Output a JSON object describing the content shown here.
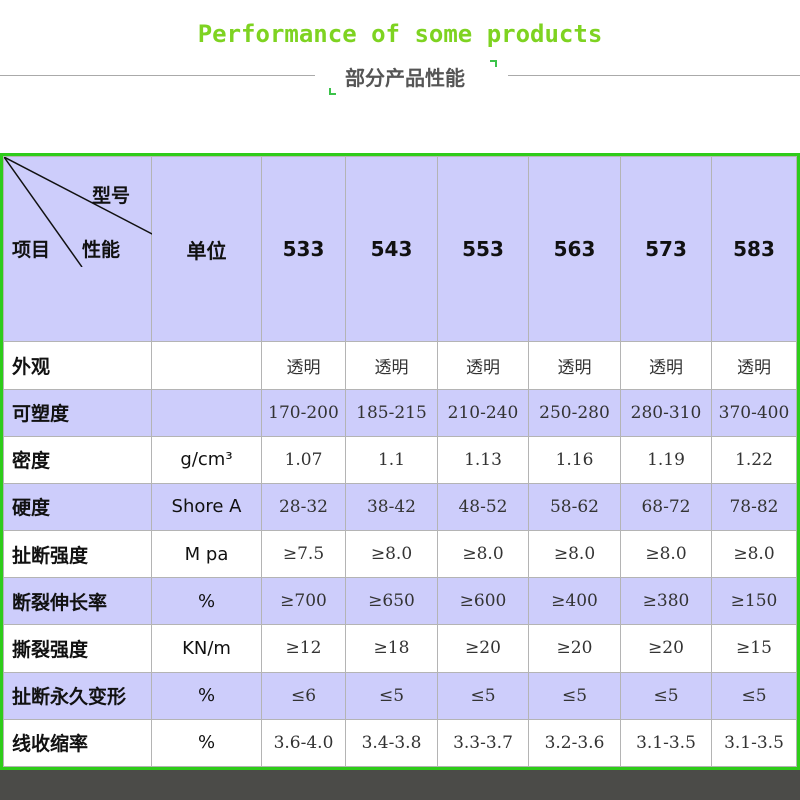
{
  "title": "Performance of some products",
  "subtitle": "部分产品性能",
  "table": {
    "corner": {
      "top": "型号",
      "middle": "性能",
      "left": "项目"
    },
    "unit_header": "单位",
    "models": [
      "533",
      "543",
      "553",
      "563",
      "573",
      "583"
    ],
    "rows": [
      {
        "name": "外观",
        "unit": "",
        "values": [
          "透明",
          "透明",
          "透明",
          "透明",
          "透明",
          "透明"
        ]
      },
      {
        "name": "可塑度",
        "unit": "",
        "values": [
          "170-200",
          "185-215",
          "210-240",
          "250-280",
          "280-310",
          "370-400"
        ]
      },
      {
        "name": "密度",
        "unit": "g/cm³",
        "values": [
          "1.07",
          "1.1",
          "1.13",
          "1.16",
          "1.19",
          "1.22"
        ]
      },
      {
        "name": "硬度",
        "unit": "Shore A",
        "values": [
          "28-32",
          "38-42",
          "48-52",
          "58-62",
          "68-72",
          "78-82"
        ]
      },
      {
        "name": "扯断强度",
        "unit": "M pa",
        "values": [
          "≥7.5",
          "≥8.0",
          "≥8.0",
          "≥8.0",
          "≥8.0",
          "≥8.0"
        ]
      },
      {
        "name": "断裂伸长率",
        "unit": "%",
        "values": [
          "≥700",
          "≥650",
          "≥600",
          "≥400",
          "≥380",
          "≥150"
        ]
      },
      {
        "name": "撕裂强度",
        "unit": "KN/m",
        "values": [
          "≥12",
          "≥18",
          "≥20",
          "≥20",
          "≥20",
          "≥15"
        ]
      },
      {
        "name": "扯断永久变形",
        "unit": "%",
        "values": [
          "≤6",
          "≤5",
          "≤5",
          "≤5",
          "≤5",
          "≤5"
        ]
      },
      {
        "name": "线收缩率",
        "unit": "%",
        "values": [
          "3.6-4.0",
          "3.4-3.8",
          "3.3-3.7",
          "3.2-3.6",
          "3.1-3.5",
          "3.1-3.5"
        ]
      }
    ]
  },
  "colors": {
    "title": "#7ed321",
    "border": "#2ecc1a",
    "row_highlight": "#cdcdfb"
  }
}
